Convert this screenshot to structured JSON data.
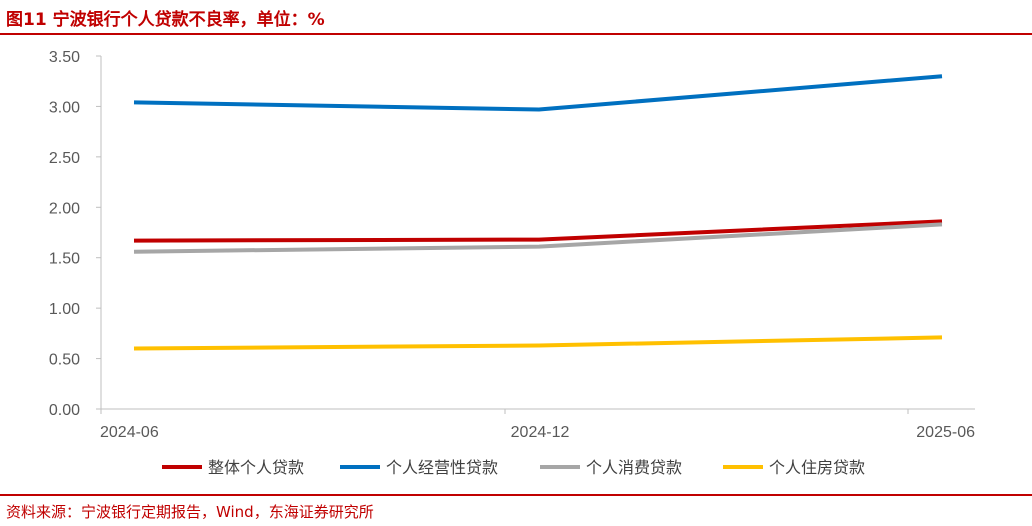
{
  "header": {
    "title": "图11  宁波银行个人贷款不良率，单位：%"
  },
  "footer": {
    "source": "资料来源：宁波银行定期报告，Wind，东海证券研究所"
  },
  "colors": {
    "brand_red": "#c00000",
    "axis": "#bfbfbf",
    "tick_text": "#595959"
  },
  "chart_data": {
    "type": "line",
    "title": "",
    "xlabel": "",
    "ylabel": "",
    "categories": [
      "2024-06",
      "2024-12",
      "2025-06"
    ],
    "ylim": [
      0,
      3.5
    ],
    "yticks": [
      "0.00",
      "0.50",
      "1.00",
      "1.50",
      "2.00",
      "2.50",
      "3.00",
      "3.50"
    ],
    "grid": false,
    "legend_position": "bottom",
    "series": [
      {
        "name": "整体个人贷款",
        "color": "#c00000",
        "values": [
          1.67,
          1.68,
          1.86
        ]
      },
      {
        "name": "个人经营性贷款",
        "color": "#0070c0",
        "values": [
          3.04,
          2.97,
          3.3
        ]
      },
      {
        "name": "个人消费贷款",
        "color": "#a6a6a6",
        "values": [
          1.56,
          1.61,
          1.83
        ]
      },
      {
        "name": "个人住房贷款",
        "color": "#ffc000",
        "values": [
          0.6,
          0.63,
          0.71
        ]
      }
    ]
  }
}
